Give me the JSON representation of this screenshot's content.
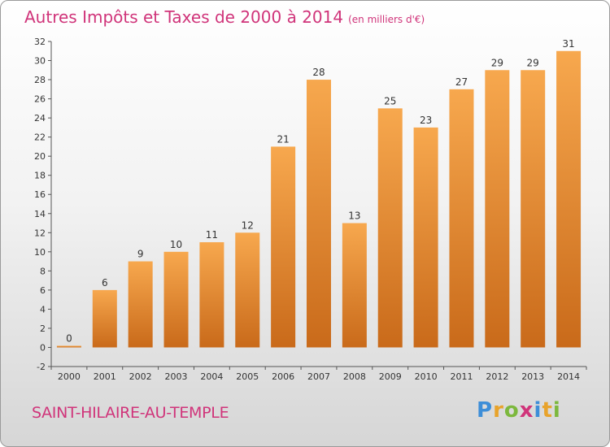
{
  "header": {
    "title": "Autres Impôts et Taxes de 2000 à 2014",
    "unit": "(en milliers d'€)"
  },
  "footer": {
    "commune": "SAINT-HILAIRE-AU-TEMPLE",
    "logo": [
      "P",
      "r",
      "o",
      "x",
      "i",
      "t",
      "i"
    ]
  },
  "chart_data": {
    "type": "bar",
    "title": "Autres Impôts et Taxes de 2000 à 2014",
    "subtitle": "(en milliers d'€)",
    "xlabel": "",
    "ylabel": "",
    "categories": [
      "2000",
      "2001",
      "2002",
      "2003",
      "2004",
      "2005",
      "2006",
      "2007",
      "2008",
      "2009",
      "2010",
      "2011",
      "2012",
      "2013",
      "2014"
    ],
    "values": [
      0,
      6,
      9,
      10,
      11,
      12,
      21,
      28,
      13,
      25,
      23,
      27,
      29,
      29,
      31
    ],
    "ylim": [
      -2,
      32
    ],
    "yticks": [
      -2,
      0,
      2,
      4,
      6,
      8,
      10,
      12,
      14,
      16,
      18,
      20,
      22,
      24,
      26,
      28,
      30,
      32
    ],
    "grid": false,
    "legend": "none",
    "colors": {
      "bar_light": "#f7a84e",
      "bar_dark": "#c96a1a",
      "accent": "#d0347a"
    }
  }
}
